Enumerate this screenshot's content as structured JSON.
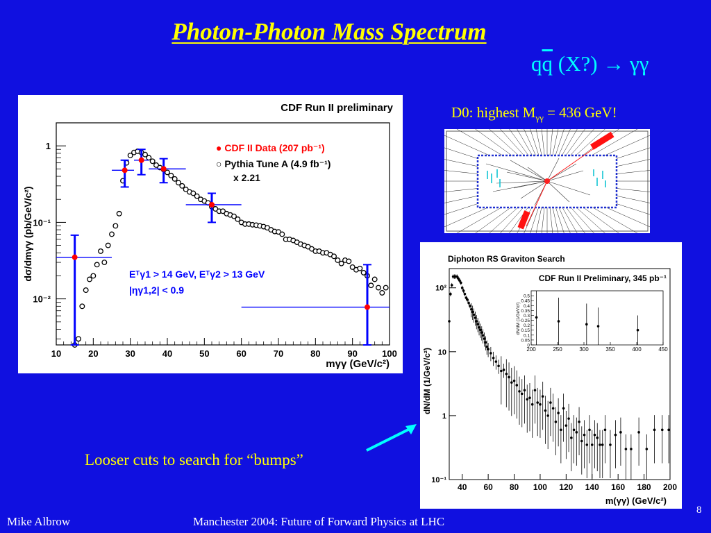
{
  "slide": {
    "title": "Photon-Photon Mass Spectrum",
    "process": {
      "quark": "q",
      "antiquark": "q",
      "rest": " (X?) → γγ"
    },
    "note": "Looser cuts to search for “bumps”",
    "footer_left": "Mike Albrow",
    "footer_center": "Manchester 2004: Future of Forward Physics at LHC",
    "page_number": "8",
    "arrow_color": "#00ffff"
  },
  "d0_event": {
    "caption_prefix": "D0: highest M",
    "caption_sub": "γγ",
    "caption_suffix": " = 436 GeV!"
  },
  "chart_data": [
    {
      "type": "scatter",
      "title": "CDF Run II preliminary",
      "xlabel": "mγγ (GeV/c²)",
      "ylabel": "dσ/dmγγ (pb/GeV/c²)",
      "xlim": [
        10,
        100
      ],
      "ylim": [
        0.0025,
        2
      ],
      "log_y": true,
      "x_ticks": [
        "10",
        "20",
        "30",
        "40",
        "50",
        "60",
        "70",
        "80",
        "90",
        "100"
      ],
      "y_ticks": [
        {
          "v": 1,
          "label": "1"
        },
        {
          "v": 0.1,
          "label": "10⁻¹"
        },
        {
          "v": 0.01,
          "label": "10⁻²"
        }
      ],
      "legend": [
        "● CDF II Data (207 pb⁻¹)",
        "○ Pythia Tune A (4.9 fb⁻¹)",
        "x 2.21"
      ],
      "legend_colors": [
        "#ff0000",
        "#000000",
        "#000000"
      ],
      "cuts": [
        "Eᵀγ1 > 14 GeV, Eᵀγ2 > 13 GeV",
        "|ηγ1,2| < 0.9"
      ],
      "cuts_color": "#0000ff",
      "data_color": "#ff0000",
      "error_color": "#0000ff",
      "series": [
        {
          "name": "CDF II Data (207 pb⁻¹)",
          "points": [
            {
              "x": 15,
              "y": 0.035,
              "xlo": 10,
              "xhi": 25,
              "ylo": 0.0025,
              "yhi": 0.068
            },
            {
              "x": 28.5,
              "y": 0.48,
              "xlo": 25,
              "xhi": 31,
              "ylo": 0.29,
              "yhi": 0.65
            },
            {
              "x": 33,
              "y": 0.65,
              "xlo": 31,
              "xhi": 35,
              "ylo": 0.42,
              "yhi": 0.9
            },
            {
              "x": 39,
              "y": 0.5,
              "xlo": 35,
              "xhi": 45,
              "ylo": 0.33,
              "yhi": 0.68
            },
            {
              "x": 52,
              "y": 0.17,
              "xlo": 45,
              "xhi": 60,
              "ylo": 0.1,
              "yhi": 0.24
            },
            {
              "x": 94,
              "y": 0.0078,
              "xlo": 60,
              "xhi": 100,
              "ylo": 0.0025,
              "yhi": 0.028
            }
          ]
        },
        {
          "name": "Pythia Tune A (4.9 fb⁻¹)",
          "x": [
            15,
            16,
            17,
            18,
            19,
            20,
            21,
            22,
            23,
            24,
            25,
            26,
            27,
            28,
            29,
            30,
            31,
            32,
            33,
            34,
            35,
            36,
            37,
            38,
            39,
            40,
            41,
            42,
            43,
            44,
            45,
            46,
            47,
            48,
            49,
            50,
            51,
            52,
            53,
            54,
            55,
            56,
            57,
            58,
            59,
            60,
            61,
            62,
            63,
            64,
            65,
            66,
            67,
            68,
            69,
            70,
            71,
            72,
            73,
            74,
            75,
            76,
            77,
            78,
            79,
            80,
            81,
            82,
            83,
            84,
            85,
            86,
            87,
            88,
            89,
            90,
            91,
            92,
            93,
            94,
            95,
            96,
            97,
            98,
            99
          ],
          "y": [
            0.0025,
            0.003,
            0.008,
            0.013,
            0.018,
            0.02,
            0.028,
            0.042,
            0.03,
            0.05,
            0.07,
            0.09,
            0.13,
            0.35,
            0.6,
            0.75,
            0.82,
            0.85,
            0.82,
            0.77,
            0.7,
            0.63,
            0.56,
            0.52,
            0.49,
            0.45,
            0.41,
            0.37,
            0.33,
            0.3,
            0.27,
            0.25,
            0.24,
            0.22,
            0.2,
            0.19,
            0.18,
            0.16,
            0.15,
            0.14,
            0.14,
            0.13,
            0.125,
            0.12,
            0.11,
            0.1,
            0.095,
            0.095,
            0.093,
            0.092,
            0.09,
            0.088,
            0.085,
            0.08,
            0.076,
            0.075,
            0.07,
            0.06,
            0.06,
            0.058,
            0.055,
            0.052,
            0.05,
            0.048,
            0.045,
            0.042,
            0.042,
            0.04,
            0.04,
            0.038,
            0.036,
            0.032,
            0.029,
            0.032,
            0.031,
            0.026,
            0.024,
            0.025,
            0.022,
            0.02,
            0.015,
            0.018,
            0.014,
            0.012,
            0.014
          ]
        }
      ]
    },
    {
      "type": "scatter",
      "title": "Diphoton RS Graviton Search",
      "subtitle": "CDF Run II Preliminary, 345 pb⁻¹",
      "xlabel": "m(γγ) (GeV/c²)",
      "ylabel": "dN/dM (1/GeV/c²)",
      "xlim": [
        30,
        200
      ],
      "ylim": [
        0.1,
        200
      ],
      "log_y": true,
      "x_ticks": [
        "40",
        "60",
        "80",
        "100",
        "120",
        "140",
        "160",
        "180",
        "200"
      ],
      "y_ticks": [
        {
          "v": 100,
          "label": "10²"
        },
        {
          "v": 10,
          "label": "10"
        },
        {
          "v": 1,
          "label": "1"
        },
        {
          "v": 0.1,
          "label": "10⁻¹"
        }
      ],
      "series": [
        {
          "name": "",
          "x": [
            30,
            31,
            32,
            33,
            34,
            35,
            36,
            37,
            38,
            39,
            40,
            41,
            42,
            43,
            44,
            45,
            46,
            47,
            48,
            49,
            50,
            51,
            52,
            53,
            54,
            55,
            56,
            57,
            58,
            59,
            60,
            62,
            64,
            66,
            68,
            70,
            72,
            74,
            76,
            78,
            80,
            82,
            84,
            86,
            88,
            90,
            92,
            94,
            96,
            98,
            100,
            102,
            104,
            106,
            108,
            110,
            112,
            114,
            116,
            118,
            120,
            122,
            124,
            126,
            128,
            130,
            132,
            134,
            136,
            138,
            140,
            142,
            144,
            146,
            148,
            150,
            154,
            158,
            162,
            166,
            170,
            176,
            182,
            188,
            194,
            199
          ],
          "y": [
            30,
            80,
            110,
            150,
            150,
            150,
            150,
            140,
            130,
            120,
            100,
            90,
            80,
            70,
            65,
            58,
            52,
            46,
            42,
            38,
            34,
            30,
            27,
            24,
            22,
            20,
            18,
            16,
            14,
            12,
            11,
            9.5,
            8,
            7,
            6,
            5,
            5.2,
            4.5,
            4,
            3.3,
            3.5,
            3,
            2.4,
            2.2,
            2.5,
            1.8,
            1.9,
            1.5,
            2.5,
            1.6,
            1.5,
            2,
            1.2,
            1,
            1.6,
            1.3,
            0.8,
            1.1,
            0.6,
            1.3,
            0.7,
            0.9,
            0.45,
            0.6,
            0.55,
            0.8,
            0.4,
            0.5,
            0.35,
            0.6,
            0.35,
            0.5,
            0.45,
            0.35,
            0.35,
            0.6,
            0.35,
            0.5,
            0.55,
            0.3,
            0.3,
            0.55,
            0.3,
            0.6,
            0.6,
            0.6
          ]
        }
      ]
    },
    {
      "type": "scatter",
      "title": "",
      "ylabel": "dN/dM (1/GeV/c²)",
      "xlim": [
        200,
        450
      ],
      "ylim": [
        0,
        0.55
      ],
      "x_ticks": [
        "200",
        "250",
        "300",
        "350",
        "400",
        "450"
      ],
      "y_ticks": [
        "0.5",
        "0.45",
        "0.4",
        "0.35",
        "0.3",
        "0.25",
        "0.2",
        "0.15",
        "0.1",
        "0.05",
        "0"
      ],
      "series": [
        {
          "name": "",
          "x": [
            210,
            252,
            305,
            327,
            402
          ],
          "y": [
            0.28,
            0.24,
            0.21,
            0.19,
            0.15
          ],
          "yerr": [
            0.28,
            0.24,
            0.21,
            0.19,
            0.15
          ]
        }
      ]
    }
  ]
}
